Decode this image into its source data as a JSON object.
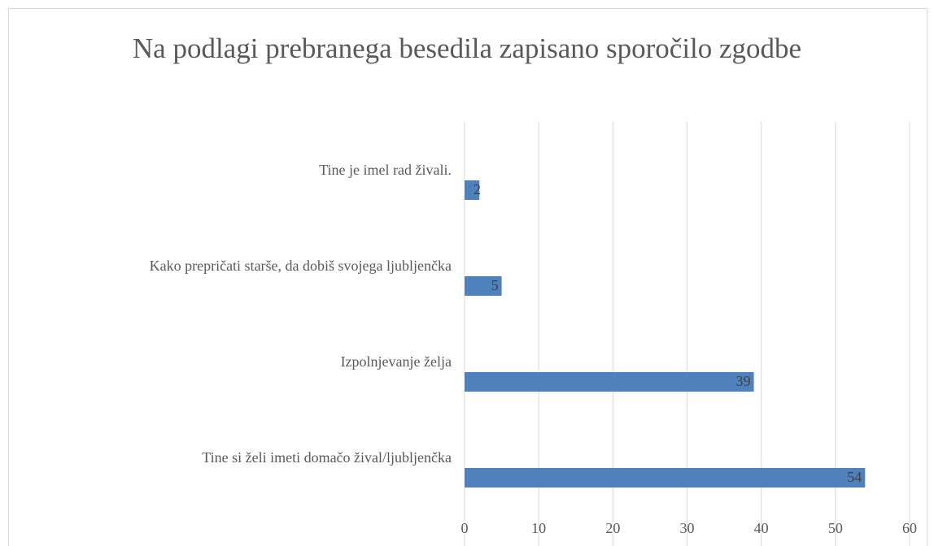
{
  "chart_data": {
    "type": "barh",
    "title": "Na podlagi prebranega besedila zapisano sporočilo zgodbe",
    "categories": [
      "Tine je imel rad živali.",
      "Kako prepričati starše, da dobiš svojega ljubljenčka",
      "Izpolnjevanje želja",
      "Tine si želi imeti domačo žival/ljubljenčka"
    ],
    "values": [
      2,
      5,
      39,
      54
    ],
    "color": "#4f81bd",
    "xlim": [
      0,
      60
    ],
    "xticks": [
      0,
      10,
      20,
      30,
      40,
      50,
      60
    ],
    "grid": true
  }
}
